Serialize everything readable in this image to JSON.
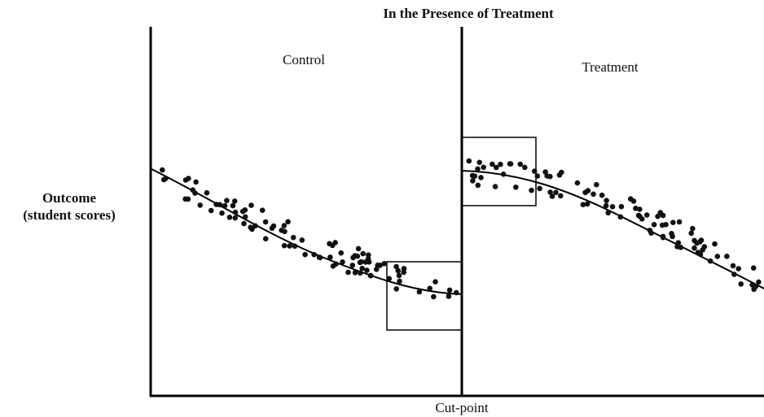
{
  "title": "In the Presence of Treatment",
  "regions": {
    "control": "Control",
    "treatment": "Treatment"
  },
  "y_label": {
    "line1": "Outcome",
    "line2": "(student scores)"
  },
  "x_label": "Cut-point"
}
